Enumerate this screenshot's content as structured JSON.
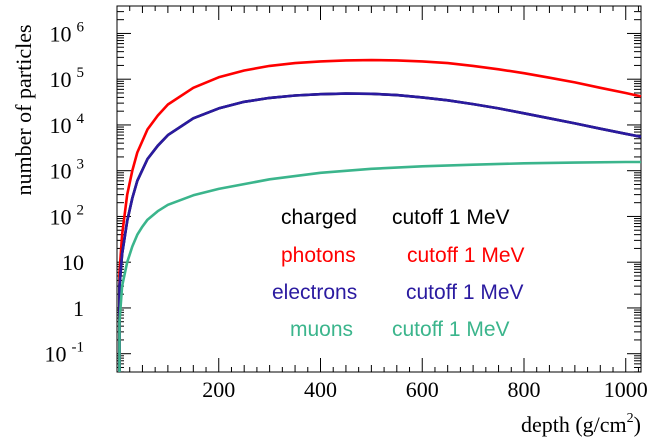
{
  "chart_data": {
    "type": "line",
    "xlabel": "depth (g/cm",
    "xlabel_sup": "2",
    "xlabel_close": ")",
    "ylabel": "number of particles",
    "xlim": [
      0,
      1030
    ],
    "ylim_log10": [
      -1.4,
      6.6
    ],
    "yscale": "log",
    "grid": false,
    "x_ticks": [
      {
        "value": 200,
        "label": "200"
      },
      {
        "value": 400,
        "label": "400"
      },
      {
        "value": 600,
        "label": "600"
      },
      {
        "value": 800,
        "label": "800"
      },
      {
        "value": 1000,
        "label": "1000"
      }
    ],
    "y_ticks": [
      {
        "exp": 6,
        "base": "10",
        "sup": "6"
      },
      {
        "exp": 5,
        "base": "10",
        "sup": "5"
      },
      {
        "exp": 4,
        "base": "10",
        "sup": "4"
      },
      {
        "exp": 3,
        "base": "10",
        "sup": "3"
      },
      {
        "exp": 2,
        "base": "10",
        "sup": "2"
      },
      {
        "exp": 1,
        "base": "10",
        "sup": ""
      },
      {
        "exp": 0,
        "base": "1",
        "sup": ""
      },
      {
        "exp": -1,
        "base": "10",
        "sup": "-1"
      }
    ],
    "legend": {
      "placement": "bottom-right",
      "entries": [
        {
          "name": "charged",
          "cut": "cutoff 1 MeV",
          "color": "#000000"
        },
        {
          "name": "photons",
          "cut": "cutoff 1 MeV",
          "color": "#ff0000"
        },
        {
          "name": "electrons",
          "cut": "cutoff 1 MeV",
          "color": "#2a1aa0"
        },
        {
          "name": "muons",
          "cut": "cutoff 1 MeV",
          "color": "#3bb58c"
        }
      ]
    },
    "series": [
      {
        "name": "photons",
        "color": "#ff0000",
        "x": [
          5,
          10,
          20,
          30,
          40,
          60,
          80,
          100,
          150,
          200,
          250,
          300,
          350,
          400,
          450,
          500,
          550,
          600,
          650,
          700,
          750,
          800,
          850,
          900,
          950,
          1000,
          1030
        ],
        "y": [
          6,
          40,
          300,
          1000,
          2500,
          8000,
          16000,
          28000,
          65000,
          110000,
          155000,
          195000,
          225000,
          245000,
          258000,
          262000,
          258000,
          245000,
          225000,
          195000,
          165000,
          135000,
          108000,
          85000,
          65000,
          50000,
          42000
        ]
      },
      {
        "name": "charged",
        "color": "#000000",
        "x": [
          5,
          10,
          20,
          30,
          40,
          60,
          80,
          100,
          150,
          200,
          250,
          300,
          350,
          400,
          450,
          500,
          550,
          600,
          650,
          700,
          750,
          800,
          850,
          900,
          950,
          1000,
          1030
        ],
        "y": [
          3,
          15,
          80,
          250,
          600,
          1800,
          3500,
          6000,
          14000,
          23000,
          32000,
          39000,
          44000,
          47000,
          48500,
          48000,
          45000,
          40000,
          34500,
          28500,
          23000,
          18000,
          14000,
          10800,
          8300,
          6400,
          5500
        ]
      },
      {
        "name": "electrons",
        "color": "#2a1aa0",
        "x": [
          5,
          10,
          20,
          30,
          40,
          60,
          80,
          100,
          150,
          200,
          250,
          300,
          350,
          400,
          450,
          500,
          550,
          600,
          650,
          700,
          750,
          800,
          850,
          900,
          950,
          1000,
          1030
        ],
        "y": [
          3,
          15,
          80,
          250,
          600,
          1800,
          3500,
          6000,
          14000,
          23000,
          32000,
          39000,
          44000,
          47000,
          48500,
          48000,
          45000,
          40000,
          34500,
          28500,
          23000,
          18000,
          14000,
          10800,
          8300,
          6400,
          5500
        ]
      },
      {
        "name": "muons",
        "color": "#3bb58c",
        "x": [
          5,
          10,
          20,
          30,
          40,
          50,
          60,
          80,
          100,
          150,
          200,
          300,
          400,
          500,
          600,
          700,
          800,
          900,
          1000,
          1030
        ],
        "y": [
          0.5,
          3,
          10,
          22,
          40,
          60,
          85,
          130,
          180,
          290,
          400,
          650,
          900,
          1100,
          1250,
          1350,
          1450,
          1500,
          1550,
          1550
        ]
      }
    ]
  }
}
